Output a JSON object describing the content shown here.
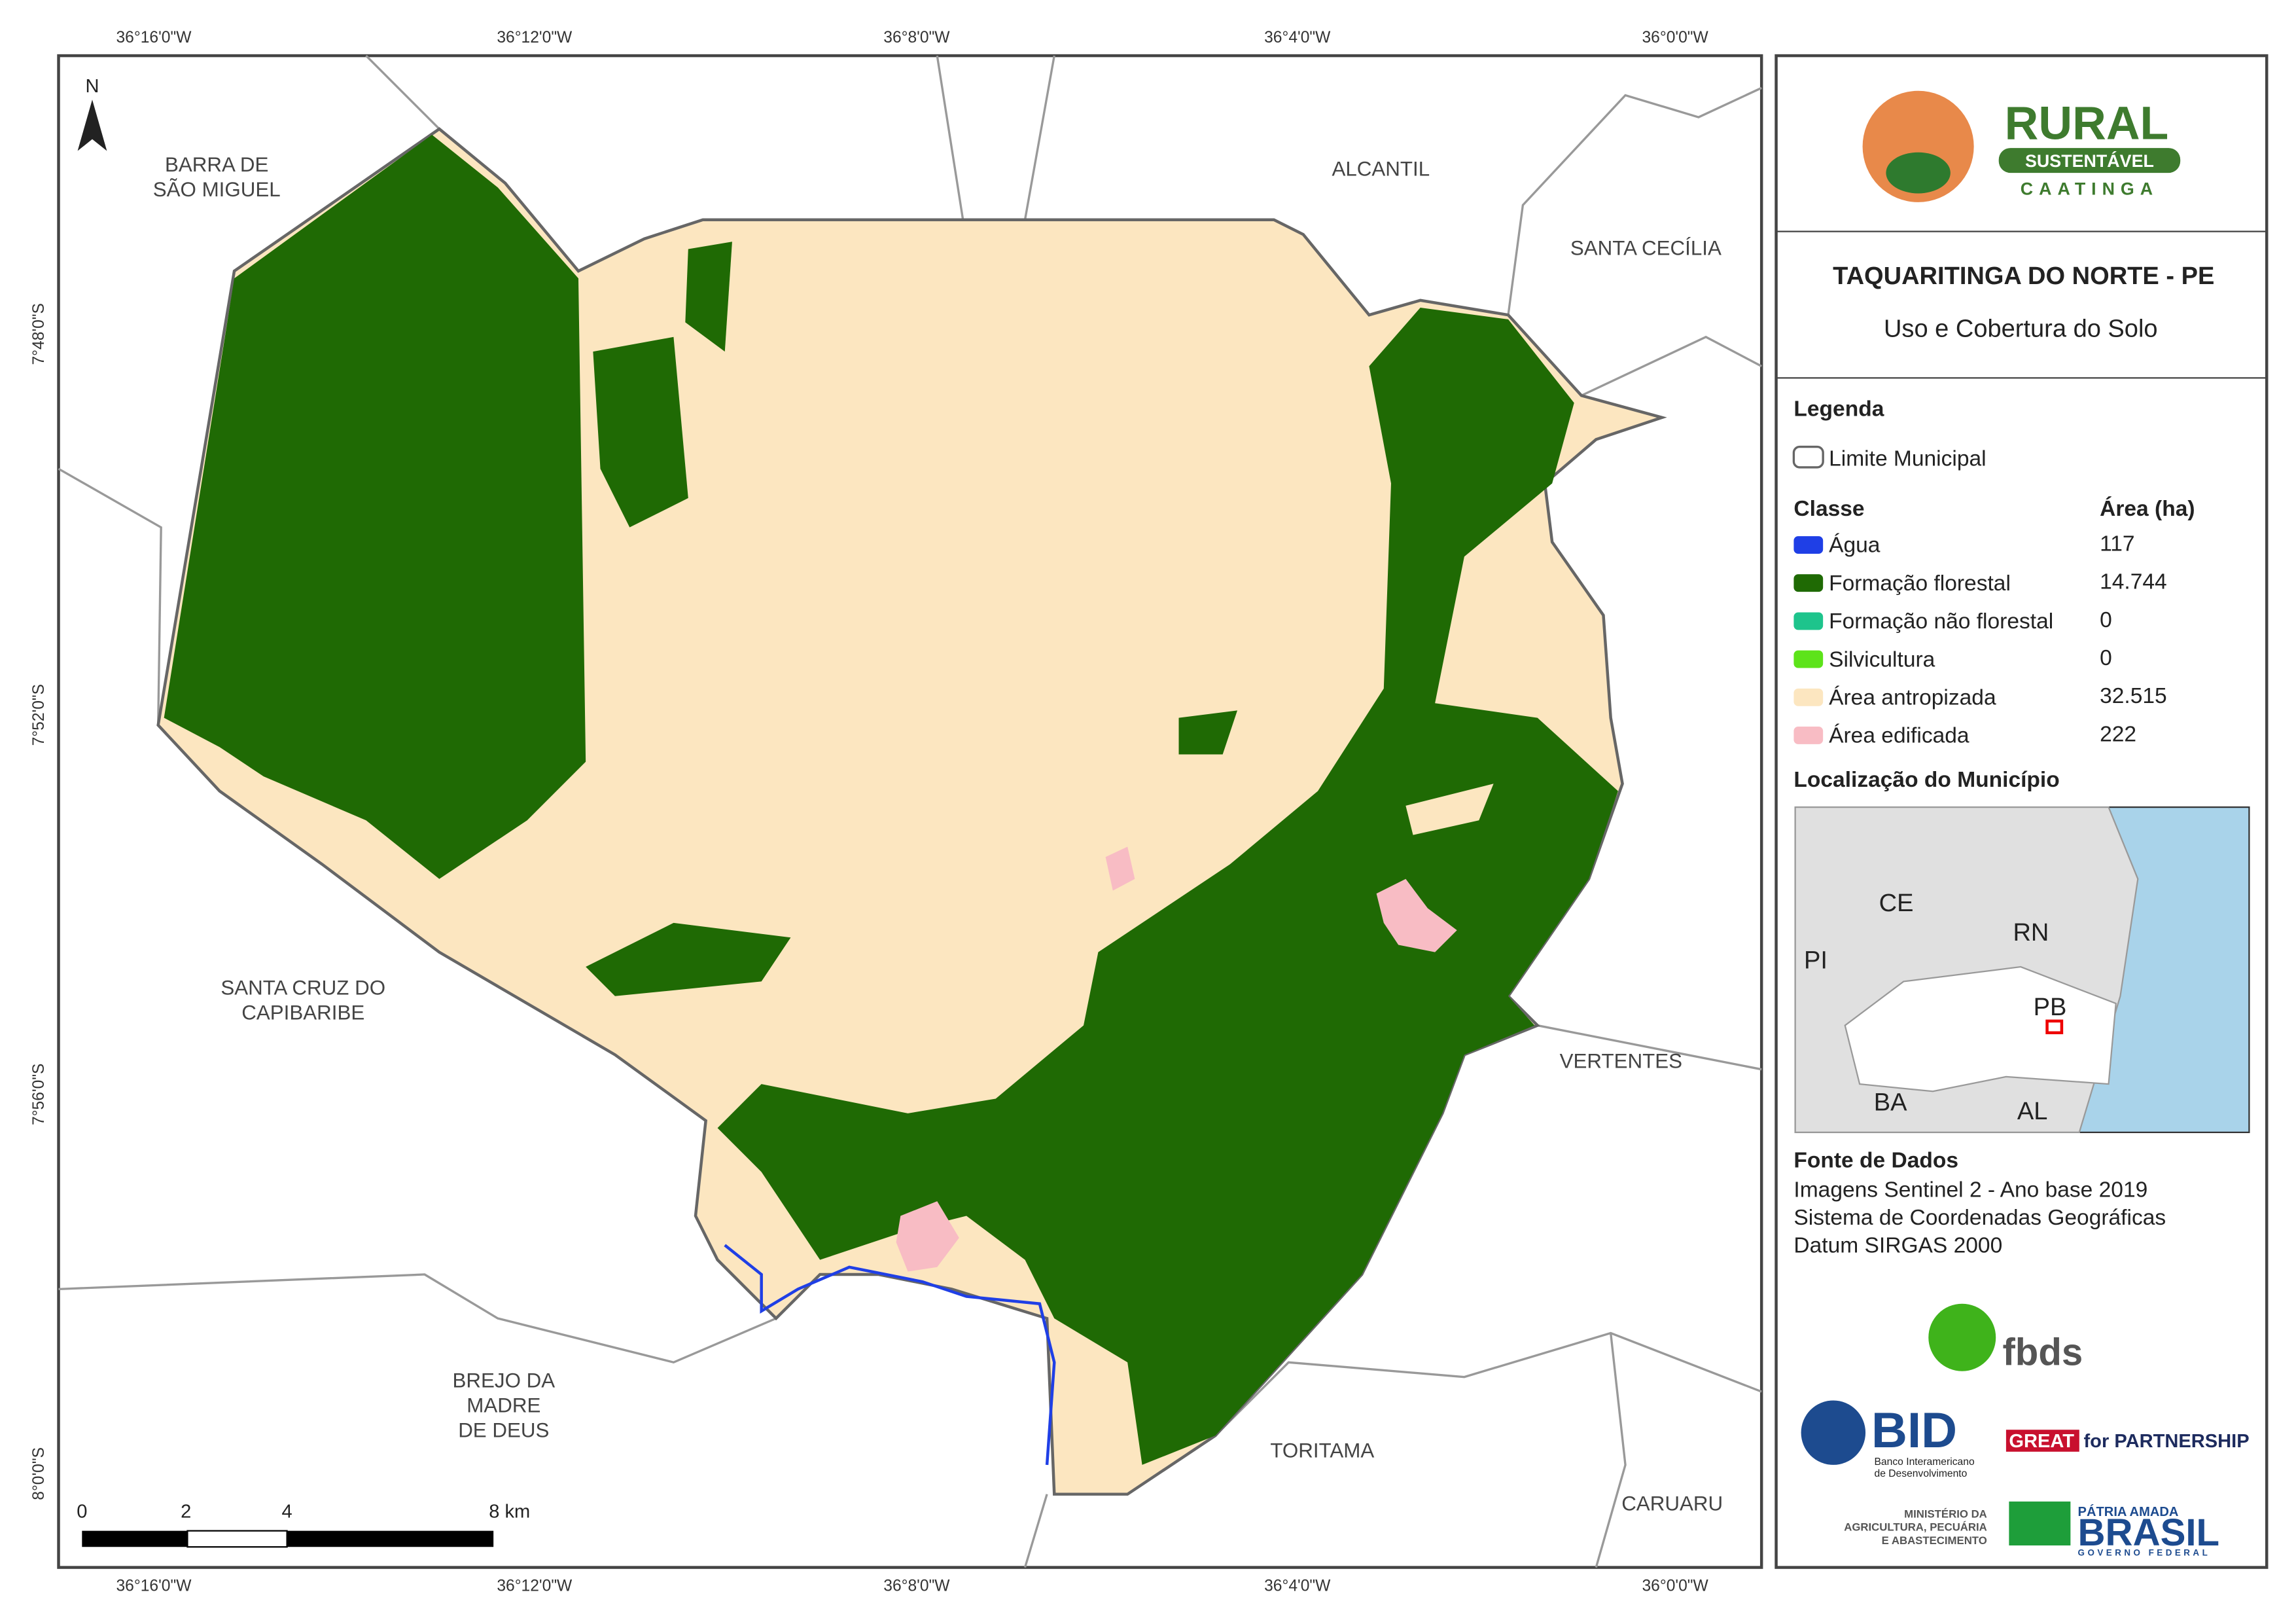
{
  "map": {
    "coordinates": {
      "top": [
        "36°16'0\"W",
        "36°12'0\"W",
        "36°8'0\"W",
        "36°4'0\"W",
        "36°0'0\"W"
      ],
      "bottom": [
        "36°16'0\"W",
        "36°12'0\"W",
        "36°8'0\"W",
        "36°4'0\"W",
        "36°0'0\"W"
      ],
      "left": [
        "7°48'0\"S",
        "7°52'0\"S",
        "7°56'0\"S",
        "8°0'0\"S"
      ]
    },
    "north": "N",
    "places": [
      {
        "lines": [
          "BARRA DE",
          "SÃO MIGUEL"
        ]
      },
      {
        "lines": [
          "ALCANTIL"
        ]
      },
      {
        "lines": [
          "SANTA CECÍLIA"
        ]
      },
      {
        "lines": [
          "SANTA CRUZ DO",
          "CAPIBARIBE"
        ]
      },
      {
        "lines": [
          "VERTENTES"
        ]
      },
      {
        "lines": [
          "BREJO DA",
          "MADRE",
          "DE DEUS"
        ]
      },
      {
        "lines": [
          "TORITAMA"
        ]
      },
      {
        "lines": [
          "CARUARU"
        ]
      }
    ],
    "scale_bar": [
      "0",
      "2",
      "4",
      "8 km"
    ]
  },
  "sidebar": {
    "logo": {
      "title": "RURAL",
      "subtitle": "SUSTENTÁVEL",
      "region": "CAATINGA"
    },
    "title": "TAQUARITINGA DO NORTE - PE",
    "subtitle": "Uso e Cobertura do Solo",
    "legend": {
      "heading": "Legenda",
      "boundary": "Limite Municipal",
      "class_header": "Classe",
      "area_header": "Área (ha)",
      "classes": [
        {
          "name": "Água",
          "color": "#1f3fe6",
          "area": "117"
        },
        {
          "name": "Formação florestal",
          "color": "#1f6a04",
          "area": "14.744"
        },
        {
          "name": "Formação não florestal",
          "color": "#1ec48c",
          "area": "0"
        },
        {
          "name": "Silvicultura",
          "color": "#5de31a",
          "area": "0"
        },
        {
          "name": "Área antropizada",
          "color": "#fce6c0",
          "area": "32.515"
        },
        {
          "name": "Área edificada",
          "color": "#f8bcc4",
          "area": "222"
        }
      ]
    },
    "location": {
      "heading": "Localização do Município",
      "labels": [
        "CE",
        "RN",
        "PI",
        "PB",
        "BA",
        "AL"
      ]
    },
    "source": {
      "heading": "Fonte de Dados",
      "lines": [
        "Imagens Sentinel 2 - Ano base 2019",
        "Sistema de Coordenadas Geográficas",
        "Datum SIRGAS 2000"
      ]
    },
    "logos": {
      "fbds": "fbds",
      "bid": "BID",
      "bid_sub": [
        "Banco Interamericano",
        "de Desenvolvimento"
      ],
      "great": "GREAT",
      "partnership": "for PARTNERSHIP",
      "ministry": [
        "MINISTÉRIO DA",
        "AGRICULTURA, PECUÁRIA",
        "E ABASTECIMENTO"
      ],
      "brasil": [
        "PÁTRIA AMADA",
        "BRASIL",
        "GOVERNO FEDERAL"
      ]
    }
  }
}
